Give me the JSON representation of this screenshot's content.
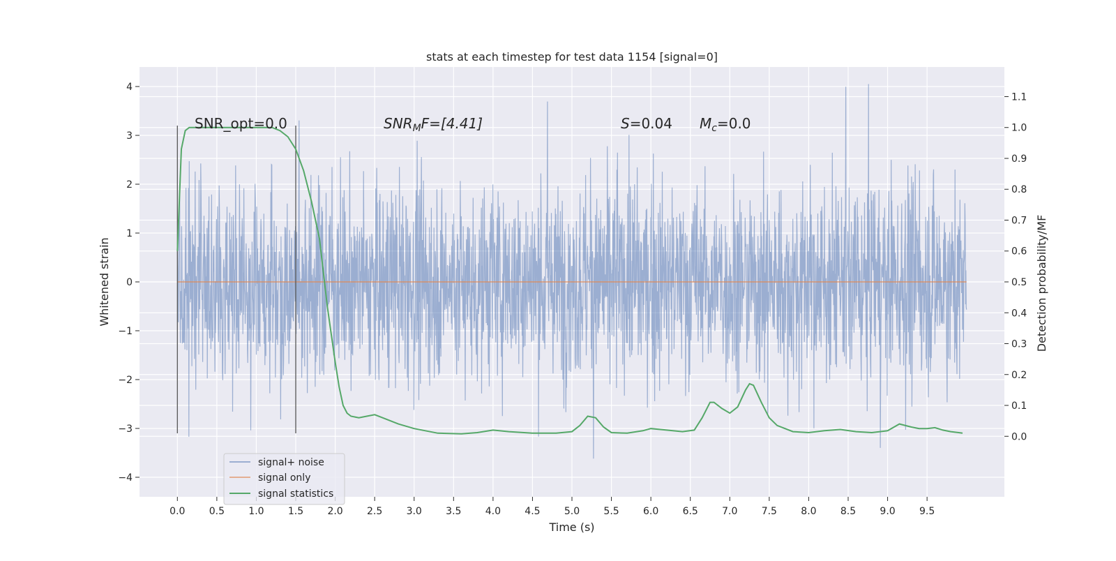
{
  "chart_data": {
    "type": "line",
    "title": "stats at each timestep for test data 1154 [signal=0]",
    "xlabel": "Time (s)",
    "ylabel_left": "Whitened strain",
    "ylabel_right": "Detection probability/MF",
    "xlim": [
      -0.48,
      10.48
    ],
    "ylim_left": [
      -4.4,
      4.4
    ],
    "ylim_right": [
      -0.196,
      1.196
    ],
    "x_ticks": [
      0.0,
      0.5,
      1.0,
      1.5,
      2.0,
      2.5,
      3.0,
      3.5,
      4.0,
      4.5,
      5.0,
      5.5,
      6.0,
      6.5,
      7.0,
      7.5,
      8.0,
      8.5,
      9.0,
      9.5
    ],
    "x_tick_labels": [
      "0.0",
      "0.5",
      "1.0",
      "1.5",
      "2.0",
      "2.5",
      "3.0",
      "3.5",
      "4.0",
      "4.5",
      "5.0",
      "5.5",
      "6.0",
      "6.5",
      "7.0",
      "7.5",
      "8.0",
      "8.5",
      "9.0",
      "9.5"
    ],
    "y_left_ticks": [
      -4,
      -3,
      -2,
      -1,
      0,
      1,
      2,
      3,
      4
    ],
    "y_left_tick_labels": [
      "−4",
      "−3",
      "−2",
      "−1",
      "0",
      "1",
      "2",
      "3",
      "4"
    ],
    "y_right_ticks": [
      0.0,
      0.1,
      0.2,
      0.3,
      0.4,
      0.5,
      0.6,
      0.7,
      0.8,
      0.9,
      1.0,
      1.1
    ],
    "y_right_tick_labels": [
      "0.0",
      "0.1",
      "0.2",
      "0.3",
      "0.4",
      "0.5",
      "0.6",
      "0.7",
      "0.8",
      "0.9",
      "1.0",
      "1.1"
    ],
    "grid": true,
    "legend_position": "lower-left",
    "series": [
      {
        "name": "signal+ noise",
        "axis": "left",
        "color": "#4c72b0",
        "kind": "noise",
        "x_range": [
          0.0,
          10.0
        ],
        "core_band": [
          -1.2,
          1.3
        ],
        "typical_envelope": [
          -2.3,
          2.6
        ],
        "max": 4.05,
        "min": -3.95
      },
      {
        "name": "signal only",
        "axis": "left",
        "color": "#dd8452",
        "x": [
          0.0,
          10.0
        ],
        "y": [
          0.0,
          0.0
        ]
      },
      {
        "name": "signal statistics",
        "axis": "right",
        "color": "#55a868",
        "x": [
          0.0,
          0.05,
          0.1,
          0.15,
          0.2,
          0.3,
          0.5,
          0.8,
          1.0,
          1.2,
          1.3,
          1.4,
          1.5,
          1.6,
          1.7,
          1.8,
          1.9,
          2.0,
          2.05,
          2.1,
          2.15,
          2.2,
          2.3,
          2.4,
          2.5,
          2.6,
          2.8,
          3.0,
          3.3,
          3.6,
          3.8,
          4.0,
          4.2,
          4.5,
          4.8,
          5.0,
          5.1,
          5.2,
          5.3,
          5.4,
          5.5,
          5.7,
          5.9,
          6.0,
          6.2,
          6.4,
          6.55,
          6.65,
          6.75,
          6.8,
          6.9,
          7.0,
          7.1,
          7.2,
          7.25,
          7.3,
          7.4,
          7.5,
          7.6,
          7.8,
          8.0,
          8.2,
          8.4,
          8.6,
          8.8,
          9.0,
          9.15,
          9.3,
          9.4,
          9.5,
          9.6,
          9.7,
          9.8,
          9.9,
          9.95
        ],
        "y": [
          0.6,
          0.93,
          0.99,
          1.0,
          1.0,
          1.0,
          1.0,
          1.0,
          1.0,
          1.0,
          0.99,
          0.97,
          0.93,
          0.86,
          0.76,
          0.64,
          0.42,
          0.24,
          0.16,
          0.1,
          0.075,
          0.065,
          0.06,
          0.065,
          0.07,
          0.06,
          0.04,
          0.025,
          0.01,
          0.008,
          0.012,
          0.02,
          0.015,
          0.01,
          0.01,
          0.015,
          0.035,
          0.065,
          0.06,
          0.03,
          0.012,
          0.01,
          0.018,
          0.025,
          0.02,
          0.015,
          0.02,
          0.06,
          0.11,
          0.11,
          0.09,
          0.075,
          0.095,
          0.15,
          0.17,
          0.165,
          0.11,
          0.06,
          0.035,
          0.015,
          0.012,
          0.018,
          0.022,
          0.015,
          0.012,
          0.018,
          0.04,
          0.03,
          0.025,
          0.025,
          0.028,
          0.02,
          0.015,
          0.012,
          0.01
        ]
      }
    ],
    "vlines": [
      {
        "x": 0.0,
        "ymin": -3.1,
        "ymax": 3.2,
        "color": "#555555"
      },
      {
        "x": 1.5,
        "ymin": -3.1,
        "ymax": 3.2,
        "color": "#555555"
      }
    ],
    "annotations": {
      "snr_opt": "SNR_opt=0.0",
      "snr_mf_sym": "SNR",
      "snr_mf_sub": "M",
      "snr_mf_rest": "F=[4.41]",
      "s_sym": "S",
      "s_rest": "=0.04",
      "mc_sym": "M",
      "mc_sub": "c",
      "mc_rest": "=0.0"
    },
    "legend": [
      {
        "label": "signal+ noise",
        "color": "#4c72b0"
      },
      {
        "label": "signal only",
        "color": "#dd8452"
      },
      {
        "label": "signal statistics",
        "color": "#55a868"
      }
    ]
  }
}
